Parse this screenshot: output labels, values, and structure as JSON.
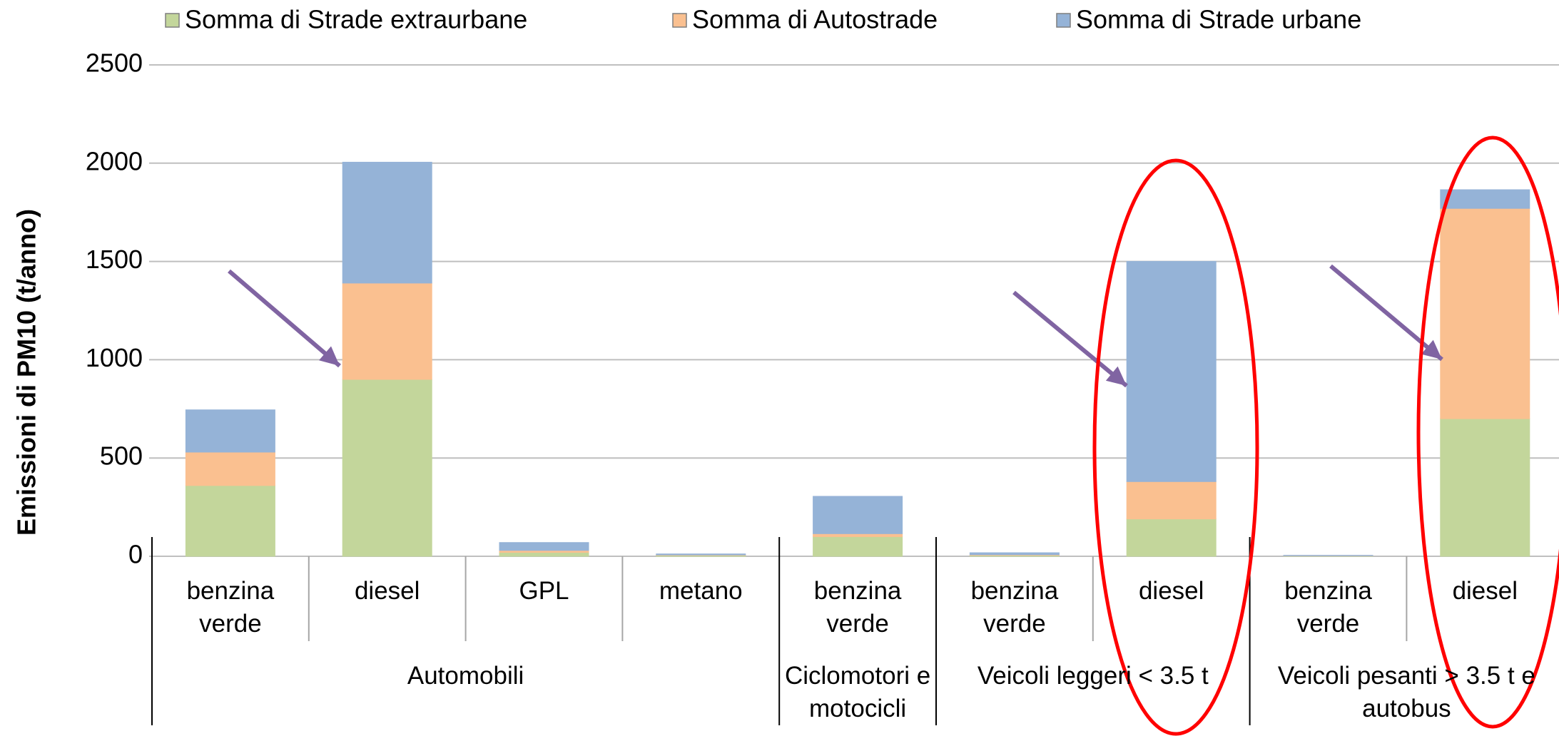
{
  "chart_data": {
    "type": "stacked_bar",
    "y_label": "Emissioni di PM10 (t/anno)",
    "groups": [
      {
        "name": "Automobili",
        "categories": [
          "benzina verde",
          "diesel",
          "GPL",
          "metano"
        ]
      },
      {
        "name": "Ciclomotori e motocicli",
        "categories": [
          "benzina verde"
        ]
      },
      {
        "name": "Veicoli leggeri < 3.5 t",
        "categories": [
          "benzina verde",
          "diesel"
        ]
      },
      {
        "name": "Veicoli pesanti > 3.5 t e autobus",
        "categories": [
          "benzina verde",
          "diesel"
        ]
      }
    ],
    "series": [
      {
        "name": "Somma di Strade extraurbane",
        "color": "#c3d69b",
        "values": [
          360,
          900,
          20,
          5,
          100,
          5,
          190,
          2,
          700
        ]
      },
      {
        "name": "Somma di Autostrade",
        "color": "#fac090",
        "values": [
          170,
          490,
          10,
          2,
          15,
          3,
          190,
          1,
          1070
        ]
      },
      {
        "name": "Somma di Strade urbane",
        "color": "#95b3d7",
        "values": [
          215,
          615,
          40,
          5,
          190,
          10,
          1120,
          2,
          95
        ]
      }
    ],
    "ylim": [
      0,
      2500
    ],
    "yticks": [
      0,
      500,
      1000,
      1500,
      2000,
      2500
    ],
    "grid": true,
    "legend": "top"
  }
}
